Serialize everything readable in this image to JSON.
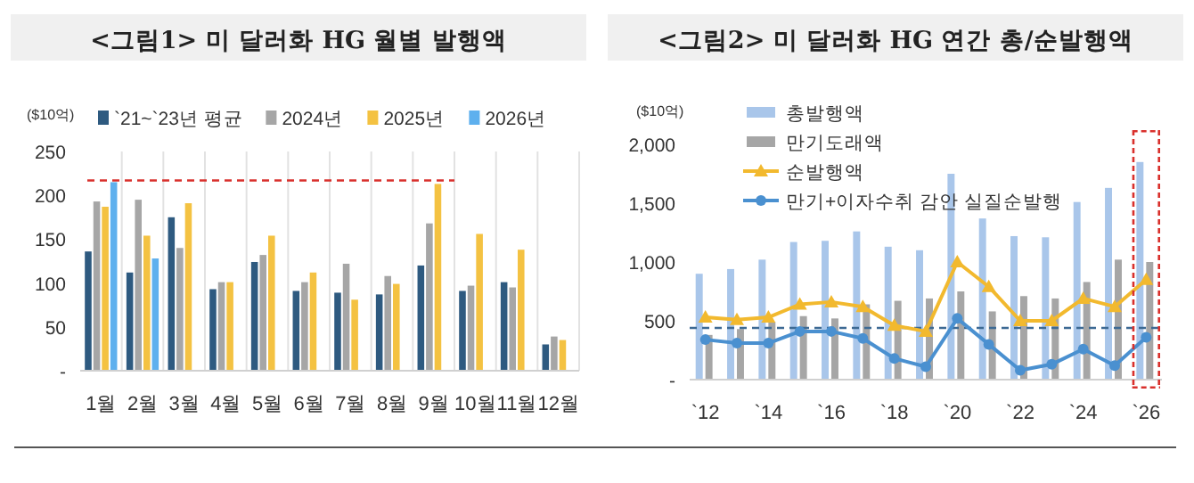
{
  "chart_data": [
    {
      "type": "bar",
      "title": "<그림1> 미 달러화 HG 월별 발행액",
      "ylabel": "($10억)",
      "categories": [
        "1월",
        "2월",
        "3월",
        "4월",
        "5월",
        "6월",
        "7월",
        "8월",
        "9월",
        "10월",
        "11월",
        "12월"
      ],
      "series": [
        {
          "name": "`21~`23년 평균",
          "color": "#2e5a80",
          "values": [
            136,
            112,
            175,
            93,
            124,
            91,
            89,
            87,
            120,
            91,
            101,
            30
          ]
        },
        {
          "name": "2024년",
          "color": "#a6a6a6",
          "values": [
            193,
            195,
            140,
            101,
            132,
            101,
            122,
            108,
            168,
            97,
            95,
            39
          ]
        },
        {
          "name": "2025년",
          "color": "#f4c242",
          "values": [
            187,
            154,
            191,
            101,
            154,
            112,
            81,
            99,
            213,
            156,
            138,
            35
          ]
        },
        {
          "name": "2026년",
          "color": "#5eb0ee",
          "values": [
            215,
            128,
            null,
            null,
            null,
            null,
            null,
            null,
            null,
            null,
            null,
            null
          ]
        }
      ],
      "ylim": [
        0,
        250
      ],
      "yticks": [
        {
          "value": 0,
          "label": "-"
        },
        50,
        100,
        150,
        200,
        250
      ],
      "grid": "x",
      "legend": "top",
      "ref_lines": [
        {
          "axis": "y",
          "value": 217,
          "color": "#d9302c",
          "line_style": "dashed"
        }
      ]
    },
    {
      "type": "bar",
      "title": "<그림2> 미 달러화 HG 연간 총/순발행액",
      "ylabel": "($10억)",
      "categories": [
        "`12",
        null,
        "`14",
        null,
        "`16",
        null,
        "`18",
        null,
        "`20",
        null,
        "`22",
        null,
        "`24",
        null,
        "`26"
      ],
      "series": [
        {
          "name": "총발행액",
          "type": "bar",
          "color": "#a9c6ea",
          "values": [
            900,
            940,
            1020,
            1170,
            1180,
            1260,
            1130,
            1100,
            1750,
            1370,
            1220,
            1210,
            1510,
            1630,
            1850
          ]
        },
        {
          "name": "만기도래액",
          "type": "bar",
          "color": "#a6a6a6",
          "values": [
            380,
            430,
            490,
            540,
            520,
            640,
            670,
            690,
            750,
            580,
            710,
            690,
            830,
            1020,
            1000
          ]
        },
        {
          "name": "순발행액",
          "type": "line",
          "marker": "triangle",
          "color": "#f2b92e",
          "values": [
            530,
            510,
            530,
            640,
            660,
            620,
            460,
            410,
            1000,
            790,
            500,
            500,
            690,
            620,
            850
          ]
        },
        {
          "name": "만기+이자수취 감안 실질순발행",
          "type": "line",
          "marker": "circle",
          "color": "#4a90d0",
          "values": [
            340,
            310,
            310,
            410,
            410,
            350,
            180,
            110,
            520,
            300,
            80,
            130,
            260,
            120,
            360
          ]
        }
      ],
      "ylim": [
        0,
        2000
      ],
      "yticks": [
        {
          "value": 0,
          "label": "-"
        },
        500,
        {
          "value": 1000,
          "label": "1,000"
        },
        {
          "value": 1500,
          "label": "1,500"
        },
        {
          "value": 2000,
          "label": "2,000"
        }
      ],
      "grid": false,
      "legend": "top left",
      "ref_lines": [
        {
          "axis": "y",
          "value": 439,
          "color": "#3d6a94",
          "line_style": "dashed"
        }
      ]
    }
  ]
}
